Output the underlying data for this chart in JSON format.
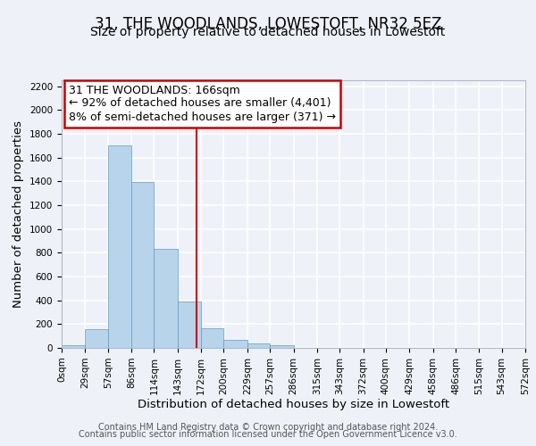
{
  "title": "31, THE WOODLANDS, LOWESTOFT, NR32 5EZ",
  "subtitle": "Size of property relative to detached houses in Lowestoft",
  "xlabel": "Distribution of detached houses by size in Lowestoft",
  "ylabel": "Number of detached properties",
  "bin_edges": [
    0,
    29,
    57,
    86,
    114,
    143,
    172,
    200,
    229,
    257,
    286,
    315,
    343,
    372,
    400,
    429,
    458,
    486,
    515,
    543,
    572
  ],
  "bin_counts": [
    20,
    155,
    1700,
    1395,
    830,
    390,
    165,
    65,
    35,
    25,
    0,
    0,
    0,
    0,
    0,
    0,
    0,
    0,
    0,
    0
  ],
  "bar_color": "#b8d4ea",
  "bar_edge_color": "#5a9ec8",
  "property_size": 166,
  "vline_color": "#cc0000",
  "annotation_line1": "31 THE WOODLANDS: 166sqm",
  "annotation_line2": "← 92% of detached houses are smaller (4,401)",
  "annotation_line3": "8% of semi-detached houses are larger (371) →",
  "annotation_box_color": "#ffffff",
  "annotation_box_edge_color": "#cc0000",
  "ylim": [
    0,
    2250
  ],
  "yticks": [
    0,
    200,
    400,
    600,
    800,
    1000,
    1200,
    1400,
    1600,
    1800,
    2000,
    2200
  ],
  "tick_labels": [
    "0sqm",
    "29sqm",
    "57sqm",
    "86sqm",
    "114sqm",
    "143sqm",
    "172sqm",
    "200sqm",
    "229sqm",
    "257sqm",
    "286sqm",
    "315sqm",
    "343sqm",
    "372sqm",
    "400sqm",
    "429sqm",
    "458sqm",
    "486sqm",
    "515sqm",
    "543sqm",
    "572sqm"
  ],
  "footer_line1": "Contains HM Land Registry data © Crown copyright and database right 2024.",
  "footer_line2": "Contains public sector information licensed under the Open Government Licence v3.0.",
  "background_color": "#eef2f8",
  "plot_background": "#eef2f8",
  "grid_color": "#ffffff",
  "title_fontsize": 12,
  "subtitle_fontsize": 10,
  "axis_label_fontsize": 9.5,
  "tick_fontsize": 7.5,
  "annotation_fontsize": 9,
  "footer_fontsize": 7
}
